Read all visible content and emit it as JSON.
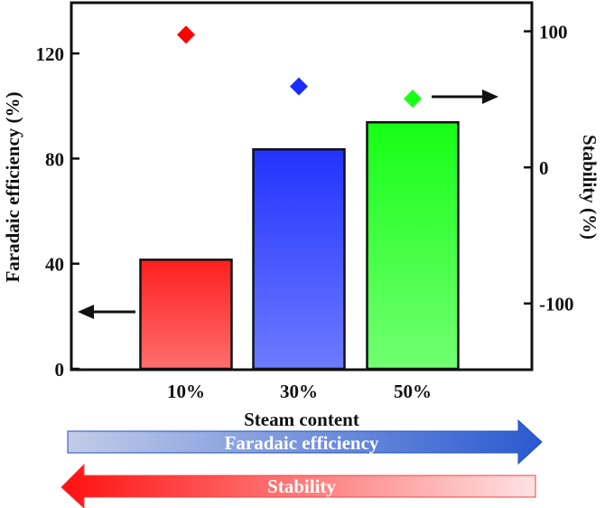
{
  "chart_data": {
    "type": "bar",
    "categories": [
      "10%",
      "30%",
      "50%"
    ],
    "xlabel": "Steam content",
    "series": [
      {
        "name": "Faradaic efficiency",
        "axis": "left",
        "kind": "bar",
        "values": [
          41.5,
          83.5,
          93.8
        ],
        "colors": [
          "#ff2a2a",
          "#3a4cff",
          "#2aff2a"
        ]
      },
      {
        "name": "Stability",
        "axis": "right",
        "kind": "scatter",
        "marker": "diamond",
        "values": [
          97.5,
          59.5,
          50.5
        ],
        "colors": [
          "#ff0000",
          "#1a2cff",
          "#1aff1a"
        ]
      }
    ],
    "y_left": {
      "label": "Faradaic efficiency (%)",
      "ticks": [
        0,
        40,
        80,
        120
      ],
      "range": [
        0,
        139.3
      ]
    },
    "y_right": {
      "label": "Stability (%)",
      "ticks": [
        -100,
        0,
        100
      ],
      "range": [
        -148,
        121
      ]
    },
    "grid": false,
    "legend": "none"
  },
  "trend_arrows": [
    {
      "label": "Faradaic efficiency",
      "direction": "right",
      "color": "#2a5ad0"
    },
    {
      "label": "Stability",
      "direction": "left",
      "color": "#ff1a1a"
    }
  ]
}
